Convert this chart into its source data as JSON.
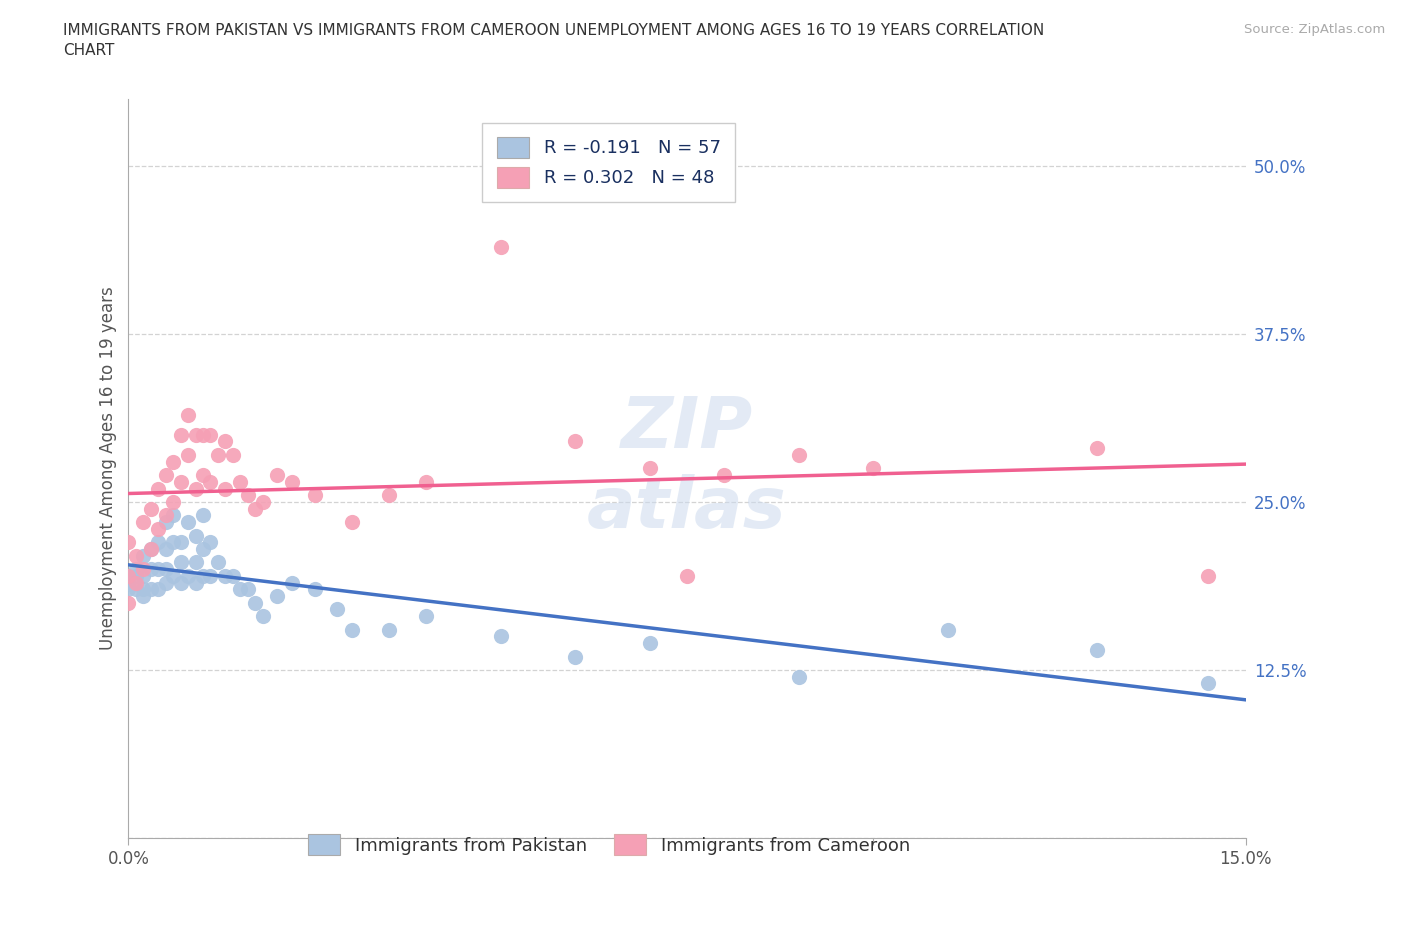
{
  "title": "IMMIGRANTS FROM PAKISTAN VS IMMIGRANTS FROM CAMEROON UNEMPLOYMENT AMONG AGES 16 TO 19 YEARS CORRELATION\nCHART",
  "source_text": "Source: ZipAtlas.com",
  "ylabel": "Unemployment Among Ages 16 to 19 years",
  "xlim": [
    0.0,
    0.15
  ],
  "ylim": [
    0.0,
    0.55
  ],
  "xtick_vals": [
    0.0,
    0.05,
    0.1,
    0.15
  ],
  "xtick_labels": [
    "0.0%",
    "",
    "",
    "15.0%"
  ],
  "ytick_vals": [
    0.0,
    0.125,
    0.25,
    0.375,
    0.5
  ],
  "ytick_labels": [
    "",
    "12.5%",
    "25.0%",
    "37.5%",
    "50.0%"
  ],
  "pakistan_color": "#aac4e0",
  "cameroon_color": "#f5a0b5",
  "pakistan_line_color": "#4472c4",
  "cameroon_line_color": "#f06090",
  "pakistan_R": -0.191,
  "pakistan_N": 57,
  "cameroon_R": 0.302,
  "cameroon_N": 48,
  "watermark": "ZIPatlas",
  "pakistan_scatter_x": [
    0.0,
    0.0,
    0.0,
    0.001,
    0.001,
    0.001,
    0.002,
    0.002,
    0.002,
    0.002,
    0.003,
    0.003,
    0.003,
    0.004,
    0.004,
    0.004,
    0.005,
    0.005,
    0.005,
    0.005,
    0.006,
    0.006,
    0.006,
    0.007,
    0.007,
    0.007,
    0.008,
    0.008,
    0.009,
    0.009,
    0.009,
    0.01,
    0.01,
    0.01,
    0.011,
    0.011,
    0.012,
    0.013,
    0.014,
    0.015,
    0.016,
    0.017,
    0.018,
    0.02,
    0.022,
    0.025,
    0.028,
    0.03,
    0.035,
    0.04,
    0.05,
    0.06,
    0.07,
    0.09,
    0.11,
    0.13,
    0.145
  ],
  "pakistan_scatter_y": [
    0.195,
    0.19,
    0.185,
    0.2,
    0.195,
    0.185,
    0.21,
    0.195,
    0.185,
    0.18,
    0.215,
    0.2,
    0.185,
    0.22,
    0.2,
    0.185,
    0.235,
    0.215,
    0.2,
    0.19,
    0.24,
    0.22,
    0.195,
    0.22,
    0.205,
    0.19,
    0.235,
    0.195,
    0.225,
    0.205,
    0.19,
    0.24,
    0.215,
    0.195,
    0.22,
    0.195,
    0.205,
    0.195,
    0.195,
    0.185,
    0.185,
    0.175,
    0.165,
    0.18,
    0.19,
    0.185,
    0.17,
    0.155,
    0.155,
    0.165,
    0.15,
    0.135,
    0.145,
    0.12,
    0.155,
    0.14,
    0.115
  ],
  "cameroon_scatter_x": [
    0.0,
    0.0,
    0.0,
    0.001,
    0.001,
    0.002,
    0.002,
    0.003,
    0.003,
    0.004,
    0.004,
    0.005,
    0.005,
    0.006,
    0.006,
    0.007,
    0.007,
    0.008,
    0.008,
    0.009,
    0.009,
    0.01,
    0.01,
    0.011,
    0.011,
    0.012,
    0.013,
    0.013,
    0.014,
    0.015,
    0.016,
    0.017,
    0.018,
    0.02,
    0.022,
    0.025,
    0.03,
    0.035,
    0.04,
    0.05,
    0.06,
    0.07,
    0.075,
    0.08,
    0.09,
    0.1,
    0.13,
    0.145
  ],
  "cameroon_scatter_y": [
    0.22,
    0.195,
    0.175,
    0.21,
    0.19,
    0.235,
    0.2,
    0.245,
    0.215,
    0.26,
    0.23,
    0.27,
    0.24,
    0.28,
    0.25,
    0.3,
    0.265,
    0.315,
    0.285,
    0.3,
    0.26,
    0.3,
    0.27,
    0.3,
    0.265,
    0.285,
    0.295,
    0.26,
    0.285,
    0.265,
    0.255,
    0.245,
    0.25,
    0.27,
    0.265,
    0.255,
    0.235,
    0.255,
    0.265,
    0.44,
    0.295,
    0.275,
    0.195,
    0.27,
    0.285,
    0.275,
    0.29,
    0.195
  ],
  "grid_color": "#c8c8c8",
  "background_color": "#ffffff",
  "fig_background": "#ffffff",
  "title_fontsize": 11,
  "label_fontsize": 12,
  "tick_fontsize": 12,
  "legend_fontsize": 13
}
